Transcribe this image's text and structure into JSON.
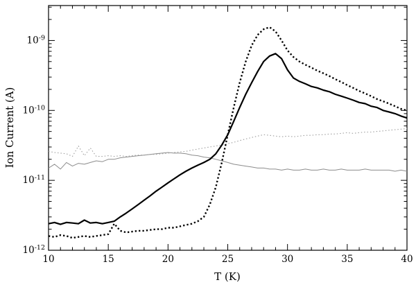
{
  "chart_data": {
    "type": "line",
    "title": "",
    "xlabel": "T (K)",
    "ylabel": "Ion Current (A)",
    "xlim": [
      10,
      40
    ],
    "ylog_range": [
      -12,
      -8.5
    ],
    "x_ticks": [
      10,
      15,
      20,
      25,
      30,
      35,
      40
    ],
    "x_minor_step": 1,
    "y_tick_exponents": [
      -12,
      -11,
      -10,
      -9
    ],
    "grid": false,
    "legend": "none",
    "x_start": 10,
    "x_step": 0.5,
    "series": [
      {
        "name": "thin-solid-gray",
        "style": "solid",
        "color": "#8c8c8c",
        "width": 1,
        "values": [
          1.5e-11,
          1.7e-11,
          1.45e-11,
          1.8e-11,
          1.6e-11,
          1.75e-11,
          1.7e-11,
          1.8e-11,
          1.9e-11,
          1.85e-11,
          2e-11,
          2e-11,
          2.1e-11,
          2.15e-11,
          2.2e-11,
          2.25e-11,
          2.3e-11,
          2.35e-11,
          2.4e-11,
          2.45e-11,
          2.5e-11,
          2.45e-11,
          2.45e-11,
          2.4e-11,
          2.3e-11,
          2.25e-11,
          2.15e-11,
          2.1e-11,
          2e-11,
          1.9e-11,
          1.8e-11,
          1.7e-11,
          1.65e-11,
          1.6e-11,
          1.55e-11,
          1.5e-11,
          1.5e-11,
          1.45e-11,
          1.45e-11,
          1.4e-11,
          1.45e-11,
          1.4e-11,
          1.4e-11,
          1.45e-11,
          1.4e-11,
          1.4e-11,
          1.45e-11,
          1.4e-11,
          1.4e-11,
          1.45e-11,
          1.4e-11,
          1.4e-11,
          1.4e-11,
          1.45e-11,
          1.4e-11,
          1.4e-11,
          1.4e-11,
          1.4e-11,
          1.35e-11,
          1.4e-11,
          1.35e-11
        ]
      },
      {
        "name": "thin-dotted-gray",
        "style": "dotted",
        "color": "#9e9e9e",
        "width": 1.1,
        "values": [
          2.6e-11,
          2.5e-11,
          2.45e-11,
          2.4e-11,
          2.2e-11,
          3.1e-11,
          2.25e-11,
          2.9e-11,
          2.2e-11,
          2.2e-11,
          2.25e-11,
          2.2e-11,
          2.25e-11,
          2.2e-11,
          2.25e-11,
          2.3e-11,
          2.3e-11,
          2.35e-11,
          2.35e-11,
          2.4e-11,
          2.45e-11,
          2.5e-11,
          2.55e-11,
          2.6e-11,
          2.7e-11,
          2.8e-11,
          2.9e-11,
          3e-11,
          3.1e-11,
          3.2e-11,
          3.35e-11,
          3.5e-11,
          3.7e-11,
          3.9e-11,
          4.1e-11,
          4.3e-11,
          4.5e-11,
          4.4e-11,
          4.3e-11,
          4.2e-11,
          4.3e-11,
          4.2e-11,
          4.3e-11,
          4.4e-11,
          4.4e-11,
          4.5e-11,
          4.5e-11,
          4.6e-11,
          4.6e-11,
          4.7e-11,
          4.8e-11,
          4.7e-11,
          4.8e-11,
          4.9e-11,
          4.9e-11,
          5e-11,
          5.1e-11,
          5.2e-11,
          5.3e-11,
          5.4e-11,
          5.5e-11
        ]
      },
      {
        "name": "thick-solid-black",
        "style": "solid",
        "color": "#000000",
        "width": 2.2,
        "values": [
          2.4e-12,
          2.5e-12,
          2.35e-12,
          2.5e-12,
          2.45e-12,
          2.4e-12,
          2.7e-12,
          2.45e-12,
          2.5e-12,
          2.4e-12,
          2.5e-12,
          2.6e-12,
          3e-12,
          3.4e-12,
          3.9e-12,
          4.5e-12,
          5.2e-12,
          6e-12,
          7e-12,
          8e-12,
          9.2e-12,
          1.05e-11,
          1.2e-11,
          1.35e-11,
          1.5e-11,
          1.65e-11,
          1.8e-11,
          2e-11,
          2.4e-11,
          3.2e-11,
          4.5e-11,
          7e-11,
          1.1e-10,
          1.7e-10,
          2.5e-10,
          3.6e-10,
          5e-10,
          6e-10,
          6.5e-10,
          5.5e-10,
          3.8e-10,
          2.9e-10,
          2.6e-10,
          2.4e-10,
          2.2e-10,
          2.1e-10,
          1.95e-10,
          1.85e-10,
          1.7e-10,
          1.6e-10,
          1.5e-10,
          1.4e-10,
          1.3e-10,
          1.25e-10,
          1.15e-10,
          1.1e-10,
          1e-10,
          9.5e-11,
          9e-11,
          8.3e-11,
          7.8e-11
        ]
      },
      {
        "name": "thick-dotted-black",
        "style": "dotted",
        "color": "#000000",
        "width": 2.4,
        "values": [
          1.6e-12,
          1.55e-12,
          1.65e-12,
          1.6e-12,
          1.5e-12,
          1.55e-12,
          1.6e-12,
          1.55e-12,
          1.6e-12,
          1.65e-12,
          1.7e-12,
          2.4e-12,
          1.9e-12,
          1.8e-12,
          1.85e-12,
          1.9e-12,
          1.9e-12,
          1.95e-12,
          2e-12,
          2e-12,
          2.1e-12,
          2.1e-12,
          2.2e-12,
          2.3e-12,
          2.4e-12,
          2.6e-12,
          3e-12,
          4.5e-12,
          8e-12,
          1.8e-11,
          4.5e-11,
          1.1e-10,
          2.5e-10,
          5e-10,
          8.5e-10,
          1.2e-09,
          1.45e-09,
          1.55e-09,
          1.35e-09,
          1e-09,
          7.2e-10,
          5.8e-10,
          5e-10,
          4.5e-10,
          4.1e-10,
          3.7e-10,
          3.4e-10,
          3.1e-10,
          2.8e-10,
          2.55e-10,
          2.3e-10,
          2.1e-10,
          1.9e-10,
          1.75e-10,
          1.6e-10,
          1.45e-10,
          1.35e-10,
          1.25e-10,
          1.15e-10,
          1.05e-10,
          1e-10
        ]
      }
    ]
  }
}
